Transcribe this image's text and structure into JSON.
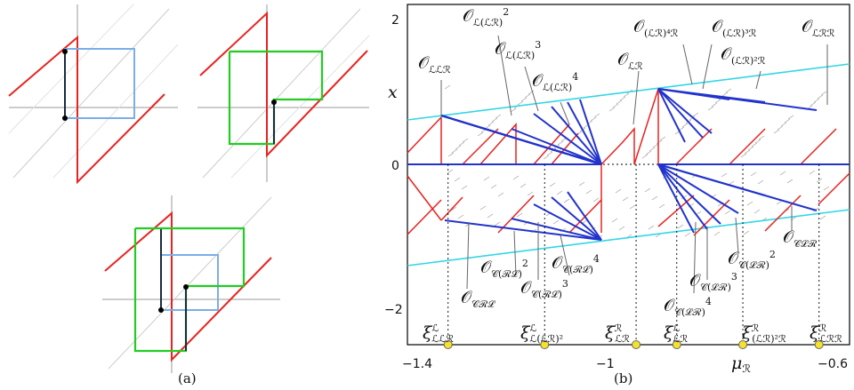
{
  "panel_a": {
    "caption": "(a)"
  },
  "panel_b": {
    "caption": "(b)",
    "xlabel": "μ",
    "xlabel_sub": "ℛ",
    "ylabel": "x",
    "xticks": [
      "−1.4",
      "−1",
      "−0.6"
    ],
    "yticks": [
      "2",
      "0",
      "−2"
    ],
    "orbit_labels_top": [
      {
        "main": "𝒪",
        "sub": "ℒℒℛ",
        "sup": ""
      },
      {
        "main": "𝒪",
        "sub": "ℒ(ℒℛ)",
        "sup": "2"
      },
      {
        "main": "𝒪",
        "sub": "ℒ(ℒℛ)",
        "sup": "3"
      },
      {
        "main": "𝒪",
        "sub": "ℒ(ℒℛ)",
        "sup": "4"
      },
      {
        "main": "𝒪",
        "sub": "ℒℛ",
        "sup": ""
      },
      {
        "main": "𝒪",
        "sub": "(ℒℛ)⁴ℛ",
        "sup": ""
      },
      {
        "main": "𝒪",
        "sub": "(ℒℛ)³ℛ",
        "sup": ""
      },
      {
        "main": "𝒪",
        "sub": "(ℒℛ)²ℛ",
        "sup": ""
      },
      {
        "main": "𝒪",
        "sub": "ℒℛℛ",
        "sup": ""
      }
    ],
    "orbit_labels_bottom": [
      {
        "main": "𝒪",
        "sub": "𝒞ℛℒ",
        "sup": ""
      },
      {
        "main": "𝒪",
        "sub": "𝒞(ℛℒ)",
        "sup": "2"
      },
      {
        "main": "𝒪",
        "sub": "𝒞(ℛℒ)",
        "sup": "3"
      },
      {
        "main": "𝒪",
        "sub": "𝒞(ℛℒ)",
        "sup": "4"
      },
      {
        "main": "𝒪",
        "sub": "𝒞(ℒℛ)",
        "sup": "4"
      },
      {
        "main": "𝒪",
        "sub": "𝒞(ℒℛ)",
        "sup": "3"
      },
      {
        "main": "𝒪",
        "sub": "𝒞(ℒℛ)",
        "sup": "2"
      },
      {
        "main": "𝒪",
        "sub": "𝒞ℒℛ",
        "sup": ""
      }
    ],
    "xi_labels": [
      {
        "main": "ξ",
        "sup": "ℒ",
        "sub": "ℒℒℛ"
      },
      {
        "main": "ξ",
        "sup": "ℒ",
        "sub": "ℒ(ℒℛ)²"
      },
      {
        "main": "ξ",
        "sup": "ℛ",
        "sub": "ℒℛ"
      },
      {
        "main": "ξ",
        "sup": "ℒ",
        "sub": "ℒℛ"
      },
      {
        "main": "ξ",
        "sup": "ℛ",
        "sub": "(ℒℛ)²ℛ"
      },
      {
        "main": "ξ",
        "sup": "ℛ",
        "sub": "ℒℛℛ"
      }
    ],
    "colors": {
      "red": "#e8221f",
      "blue": "#2233cc",
      "cyan": "#33d6e6",
      "yellow": "#f5e22a",
      "gray": "#888888"
    }
  },
  "chart_data": {
    "type": "line",
    "xlim": [
      -1.45,
      -0.58
    ],
    "ylim": [
      -2.5,
      2.1
    ],
    "xticks": [
      -1.4,
      -1,
      -0.6
    ],
    "yticks": [
      -2,
      0,
      2
    ],
    "xi_points": [
      -1.37,
      -1.18,
      -1.0,
      -0.92,
      -0.79,
      -0.64
    ],
    "series": []
  }
}
